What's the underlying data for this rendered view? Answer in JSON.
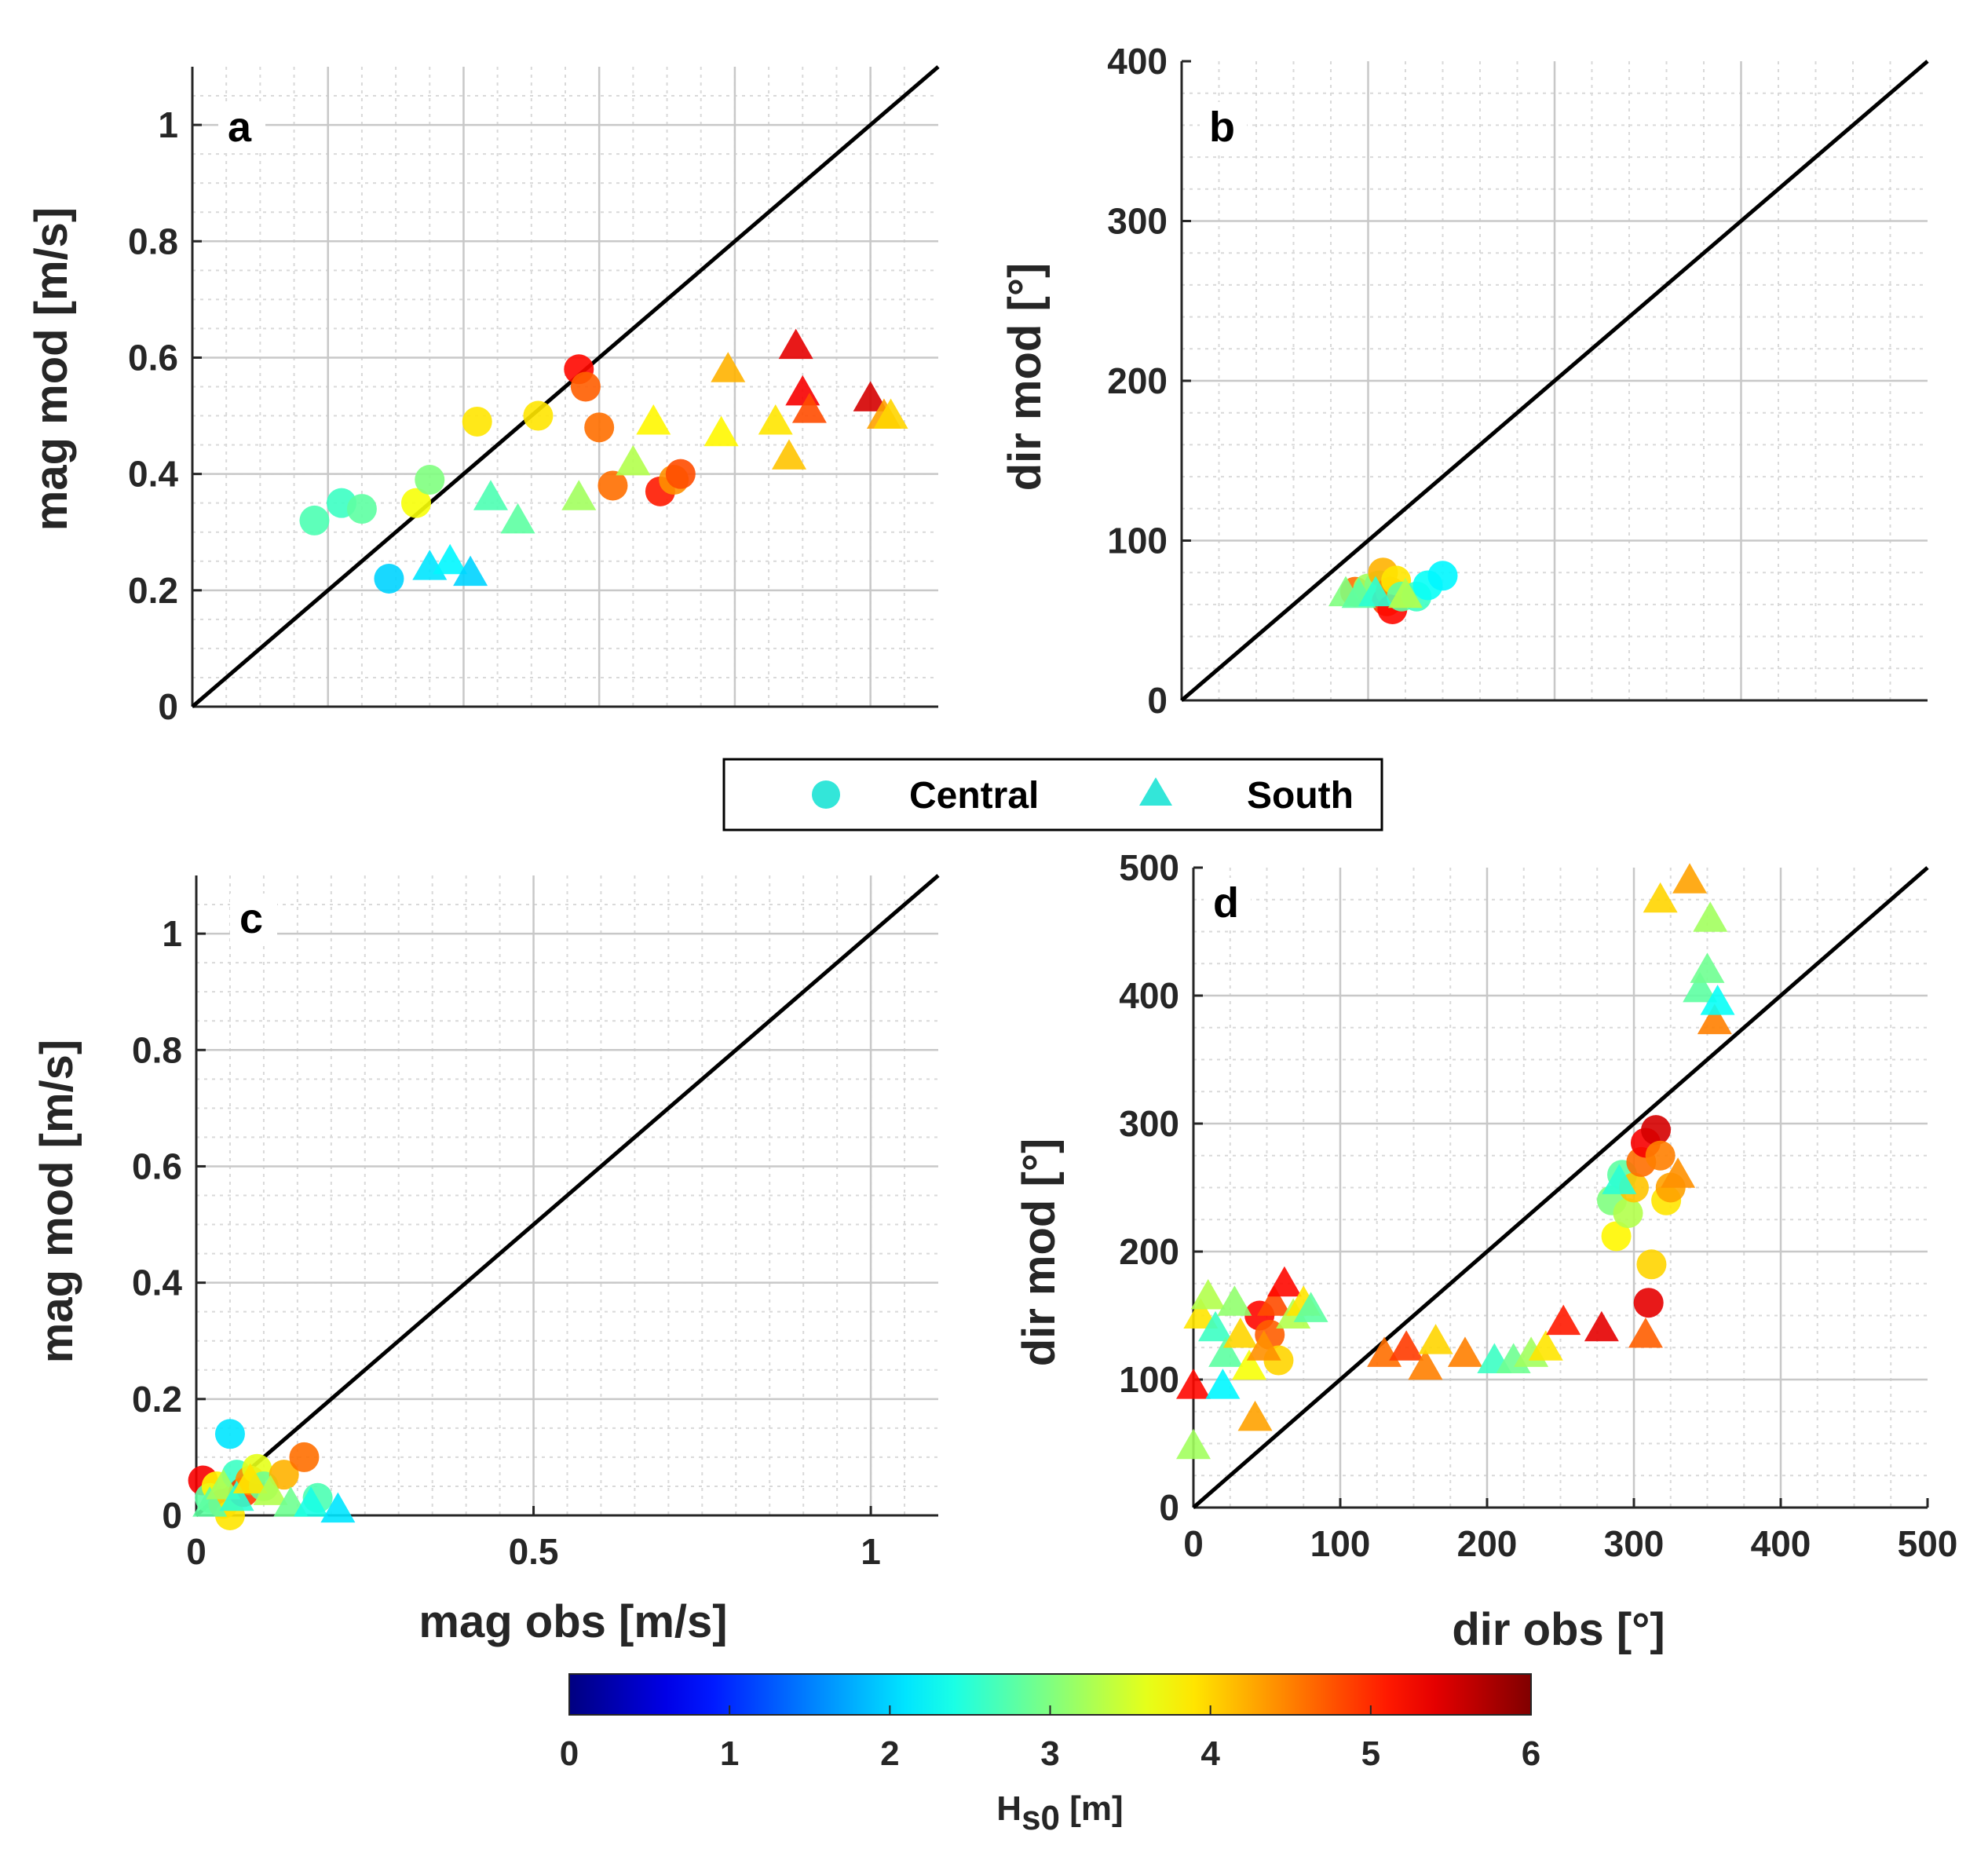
{
  "colorbar": {
    "label_main": "H",
    "label_sub": "s0",
    "label_unit": " [m]",
    "min": 0,
    "max": 6,
    "ticks": [
      "0",
      "1",
      "2",
      "3",
      "4",
      "5",
      "6"
    ],
    "colormap": "jet"
  },
  "legend": {
    "placement": "center, between top and bottom rows",
    "entries": [
      {
        "label": "Central",
        "marker": "circle",
        "color": "#33e6d9"
      },
      {
        "label": "South",
        "marker": "triangle",
        "color": "#33e6d9"
      }
    ]
  },
  "chart_data": [
    {
      "panel": "a",
      "type": "scatter",
      "xlabel": "",
      "ylabel": "mag mod [m/s]",
      "xlim": [
        0,
        1.1
      ],
      "ylim": [
        0,
        1.1
      ],
      "xticks": [],
      "yticks": [
        0,
        0.2,
        0.4,
        0.6,
        0.8,
        1
      ],
      "ytick_labels": [
        "0",
        "0.2",
        "0.4",
        "0.6",
        "0.8",
        "1"
      ],
      "grid": true,
      "reference_line": "y = x",
      "series": [
        {
          "name": "Central",
          "marker": "circle",
          "points": [
            {
              "x": 0.18,
              "y": 0.32,
              "c": 2.7
            },
            {
              "x": 0.22,
              "y": 0.35,
              "c": 2.6
            },
            {
              "x": 0.25,
              "y": 0.34,
              "c": 2.8
            },
            {
              "x": 0.29,
              "y": 0.22,
              "c": 2.0
            },
            {
              "x": 0.33,
              "y": 0.35,
              "c": 3.7
            },
            {
              "x": 0.35,
              "y": 0.39,
              "c": 3.0
            },
            {
              "x": 0.42,
              "y": 0.49,
              "c": 3.9
            },
            {
              "x": 0.51,
              "y": 0.5,
              "c": 3.9
            },
            {
              "x": 0.57,
              "y": 0.58,
              "c": 5.2
            },
            {
              "x": 0.58,
              "y": 0.55,
              "c": 4.7
            },
            {
              "x": 0.6,
              "y": 0.48,
              "c": 4.6
            },
            {
              "x": 0.62,
              "y": 0.38,
              "c": 4.6
            },
            {
              "x": 0.69,
              "y": 0.37,
              "c": 5.1
            },
            {
              "x": 0.71,
              "y": 0.39,
              "c": 4.4
            },
            {
              "x": 0.72,
              "y": 0.4,
              "c": 4.8
            }
          ]
        },
        {
          "name": "South",
          "marker": "triangle",
          "points": [
            {
              "x": 0.35,
              "y": 0.24,
              "c": 2.1
            },
            {
              "x": 0.38,
              "y": 0.25,
              "c": 2.2
            },
            {
              "x": 0.41,
              "y": 0.23,
              "c": 2.0
            },
            {
              "x": 0.44,
              "y": 0.36,
              "c": 2.7
            },
            {
              "x": 0.48,
              "y": 0.32,
              "c": 2.8
            },
            {
              "x": 0.57,
              "y": 0.36,
              "c": 3.2
            },
            {
              "x": 0.65,
              "y": 0.42,
              "c": 3.3
            },
            {
              "x": 0.68,
              "y": 0.49,
              "c": 3.8
            },
            {
              "x": 0.78,
              "y": 0.47,
              "c": 3.8
            },
            {
              "x": 0.79,
              "y": 0.58,
              "c": 4.2
            },
            {
              "x": 0.86,
              "y": 0.49,
              "c": 3.9
            },
            {
              "x": 0.88,
              "y": 0.43,
              "c": 4.1
            },
            {
              "x": 0.89,
              "y": 0.62,
              "c": 5.4
            },
            {
              "x": 0.9,
              "y": 0.54,
              "c": 5.3
            },
            {
              "x": 0.91,
              "y": 0.51,
              "c": 4.8
            },
            {
              "x": 1.0,
              "y": 0.53,
              "c": 5.5
            },
            {
              "x": 1.02,
              "y": 0.5,
              "c": 4.3
            },
            {
              "x": 1.03,
              "y": 0.5,
              "c": 4.0
            }
          ]
        }
      ]
    },
    {
      "panel": "b",
      "type": "scatter",
      "xlabel": "",
      "ylabel": "dir mod [°]",
      "xlim": [
        0,
        400
      ],
      "ylim": [
        0,
        400
      ],
      "xticks": [],
      "yticks": [
        0,
        100,
        200,
        300,
        400
      ],
      "ytick_labels": [
        "0",
        "100",
        "200",
        "300",
        "400"
      ],
      "grid": true,
      "reference_line": "y = x",
      "series": [
        {
          "name": "Central",
          "marker": "circle",
          "points": [
            {
              "x": 93,
              "y": 68,
              "c": 4.6
            },
            {
              "x": 100,
              "y": 70,
              "c": 3.2
            },
            {
              "x": 106,
              "y": 72,
              "c": 3.0
            },
            {
              "x": 108,
              "y": 80,
              "c": 4.2
            },
            {
              "x": 110,
              "y": 62,
              "c": 4.9
            },
            {
              "x": 112,
              "y": 68,
              "c": 4.4
            },
            {
              "x": 113,
              "y": 57,
              "c": 5.2
            },
            {
              "x": 115,
              "y": 75,
              "c": 3.9
            },
            {
              "x": 118,
              "y": 65,
              "c": 2.8
            },
            {
              "x": 126,
              "y": 65,
              "c": 2.6
            },
            {
              "x": 132,
              "y": 72,
              "c": 2.3
            },
            {
              "x": 140,
              "y": 78,
              "c": 2.2
            }
          ]
        },
        {
          "name": "South",
          "marker": "triangle",
          "points": [
            {
              "x": 88,
              "y": 67,
              "c": 3.0
            },
            {
              "x": 95,
              "y": 66,
              "c": 2.8
            },
            {
              "x": 104,
              "y": 67,
              "c": 2.5
            },
            {
              "x": 120,
              "y": 66,
              "c": 3.3
            }
          ]
        }
      ]
    },
    {
      "panel": "c",
      "type": "scatter",
      "xlabel": "mag obs [m/s]",
      "ylabel": "mag mod [m/s]",
      "xlim": [
        0,
        1.1
      ],
      "ylim": [
        0,
        1.1
      ],
      "xticks": [
        0,
        0.5,
        1
      ],
      "xtick_labels": [
        "0",
        "0.5",
        "1"
      ],
      "yticks": [
        0,
        0.2,
        0.4,
        0.6,
        0.8,
        1
      ],
      "ytick_labels": [
        "0",
        "0.2",
        "0.4",
        "0.6",
        "0.8",
        "1"
      ],
      "grid": true,
      "reference_line": "y = x",
      "series": [
        {
          "name": "Central",
          "marker": "circle",
          "points": [
            {
              "x": 0.01,
              "y": 0.06,
              "c": 5.3
            },
            {
              "x": 0.02,
              "y": 0.03,
              "c": 2.8
            },
            {
              "x": 0.03,
              "y": 0.05,
              "c": 3.8
            },
            {
              "x": 0.04,
              "y": 0.02,
              "c": 4.1
            },
            {
              "x": 0.05,
              "y": 0.14,
              "c": 2.1
            },
            {
              "x": 0.05,
              "y": 0.0,
              "c": 3.9
            },
            {
              "x": 0.06,
              "y": 0.07,
              "c": 2.6
            },
            {
              "x": 0.07,
              "y": 0.04,
              "c": 4.9
            },
            {
              "x": 0.08,
              "y": 0.06,
              "c": 4.4
            },
            {
              "x": 0.09,
              "y": 0.08,
              "c": 3.6
            },
            {
              "x": 0.1,
              "y": 0.05,
              "c": 2.9
            },
            {
              "x": 0.13,
              "y": 0.07,
              "c": 4.2
            },
            {
              "x": 0.16,
              "y": 0.1,
              "c": 4.6
            },
            {
              "x": 0.18,
              "y": 0.03,
              "c": 2.7
            }
          ]
        },
        {
          "name": "South",
          "marker": "triangle",
          "points": [
            {
              "x": 0.02,
              "y": 0.02,
              "c": 2.8
            },
            {
              "x": 0.04,
              "y": 0.05,
              "c": 3.2
            },
            {
              "x": 0.06,
              "y": 0.03,
              "c": 2.5
            },
            {
              "x": 0.08,
              "y": 0.06,
              "c": 3.9
            },
            {
              "x": 0.11,
              "y": 0.04,
              "c": 3.3
            },
            {
              "x": 0.14,
              "y": 0.02,
              "c": 2.9
            },
            {
              "x": 0.17,
              "y": 0.02,
              "c": 2.4
            },
            {
              "x": 0.21,
              "y": 0.01,
              "c": 2.1
            }
          ]
        }
      ]
    },
    {
      "panel": "d",
      "type": "scatter",
      "xlabel": "dir obs [°]",
      "ylabel": "dir mod [°]",
      "xlim": [
        0,
        500
      ],
      "ylim": [
        0,
        500
      ],
      "xticks": [
        0,
        100,
        200,
        300,
        400,
        500
      ],
      "xtick_labels": [
        "0",
        "100",
        "200",
        "300",
        "400",
        "500"
      ],
      "yticks": [
        0,
        100,
        200,
        300,
        400,
        500
      ],
      "ytick_labels": [
        "0",
        "100",
        "200",
        "300",
        "400",
        "500"
      ],
      "grid": true,
      "reference_line": "y = x",
      "series": [
        {
          "name": "Central",
          "marker": "circle",
          "points": [
            {
              "x": 45,
              "y": 150,
              "c": 5.2
            },
            {
              "x": 52,
              "y": 135,
              "c": 4.7
            },
            {
              "x": 58,
              "y": 115,
              "c": 4.0
            },
            {
              "x": 285,
              "y": 240,
              "c": 3.0
            },
            {
              "x": 288,
              "y": 212,
              "c": 3.8
            },
            {
              "x": 292,
              "y": 260,
              "c": 2.8
            },
            {
              "x": 296,
              "y": 230,
              "c": 3.3
            },
            {
              "x": 300,
              "y": 250,
              "c": 4.1
            },
            {
              "x": 305,
              "y": 270,
              "c": 4.6
            },
            {
              "x": 308,
              "y": 285,
              "c": 5.3
            },
            {
              "x": 310,
              "y": 160,
              "c": 5.4
            },
            {
              "x": 312,
              "y": 190,
              "c": 4.0
            },
            {
              "x": 315,
              "y": 295,
              "c": 5.5
            },
            {
              "x": 318,
              "y": 275,
              "c": 4.5
            },
            {
              "x": 322,
              "y": 240,
              "c": 3.9
            },
            {
              "x": 325,
              "y": 250,
              "c": 4.3
            }
          ]
        },
        {
          "name": "South",
          "marker": "triangle",
          "points": [
            {
              "x": 0,
              "y": 95,
              "c": 5.2
            },
            {
              "x": 0,
              "y": 48,
              "c": 3.2
            },
            {
              "x": 5,
              "y": 150,
              "c": 3.9
            },
            {
              "x": 10,
              "y": 165,
              "c": 3.3
            },
            {
              "x": 15,
              "y": 140,
              "c": 2.6
            },
            {
              "x": 20,
              "y": 95,
              "c": 2.2
            },
            {
              "x": 22,
              "y": 120,
              "c": 2.8
            },
            {
              "x": 28,
              "y": 160,
              "c": 3.1
            },
            {
              "x": 32,
              "y": 135,
              "c": 4.0
            },
            {
              "x": 38,
              "y": 110,
              "c": 3.7
            },
            {
              "x": 42,
              "y": 70,
              "c": 4.3
            },
            {
              "x": 48,
              "y": 125,
              "c": 4.4
            },
            {
              "x": 55,
              "y": 160,
              "c": 4.8
            },
            {
              "x": 62,
              "y": 175,
              "c": 5.2
            },
            {
              "x": 68,
              "y": 150,
              "c": 3.3
            },
            {
              "x": 75,
              "y": 160,
              "c": 3.9
            },
            {
              "x": 80,
              "y": 155,
              "c": 2.8
            },
            {
              "x": 130,
              "y": 120,
              "c": 4.6
            },
            {
              "x": 145,
              "y": 125,
              "c": 4.9
            },
            {
              "x": 158,
              "y": 110,
              "c": 4.5
            },
            {
              "x": 165,
              "y": 130,
              "c": 4.0
            },
            {
              "x": 185,
              "y": 120,
              "c": 4.5
            },
            {
              "x": 205,
              "y": 115,
              "c": 2.6
            },
            {
              "x": 218,
              "y": 115,
              "c": 2.9
            },
            {
              "x": 230,
              "y": 120,
              "c": 3.2
            },
            {
              "x": 240,
              "y": 125,
              "c": 3.9
            },
            {
              "x": 252,
              "y": 145,
              "c": 5.1
            },
            {
              "x": 278,
              "y": 140,
              "c": 5.4
            },
            {
              "x": 290,
              "y": 255,
              "c": 2.5
            },
            {
              "x": 308,
              "y": 135,
              "c": 4.7
            },
            {
              "x": 318,
              "y": 475,
              "c": 4.0
            },
            {
              "x": 330,
              "y": 260,
              "c": 4.4
            },
            {
              "x": 338,
              "y": 490,
              "c": 4.3
            },
            {
              "x": 345,
              "y": 405,
              "c": 2.8
            },
            {
              "x": 350,
              "y": 420,
              "c": 2.9
            },
            {
              "x": 352,
              "y": 460,
              "c": 3.2
            },
            {
              "x": 355,
              "y": 380,
              "c": 4.5
            },
            {
              "x": 357,
              "y": 395,
              "c": 2.3
            }
          ]
        }
      ]
    }
  ]
}
